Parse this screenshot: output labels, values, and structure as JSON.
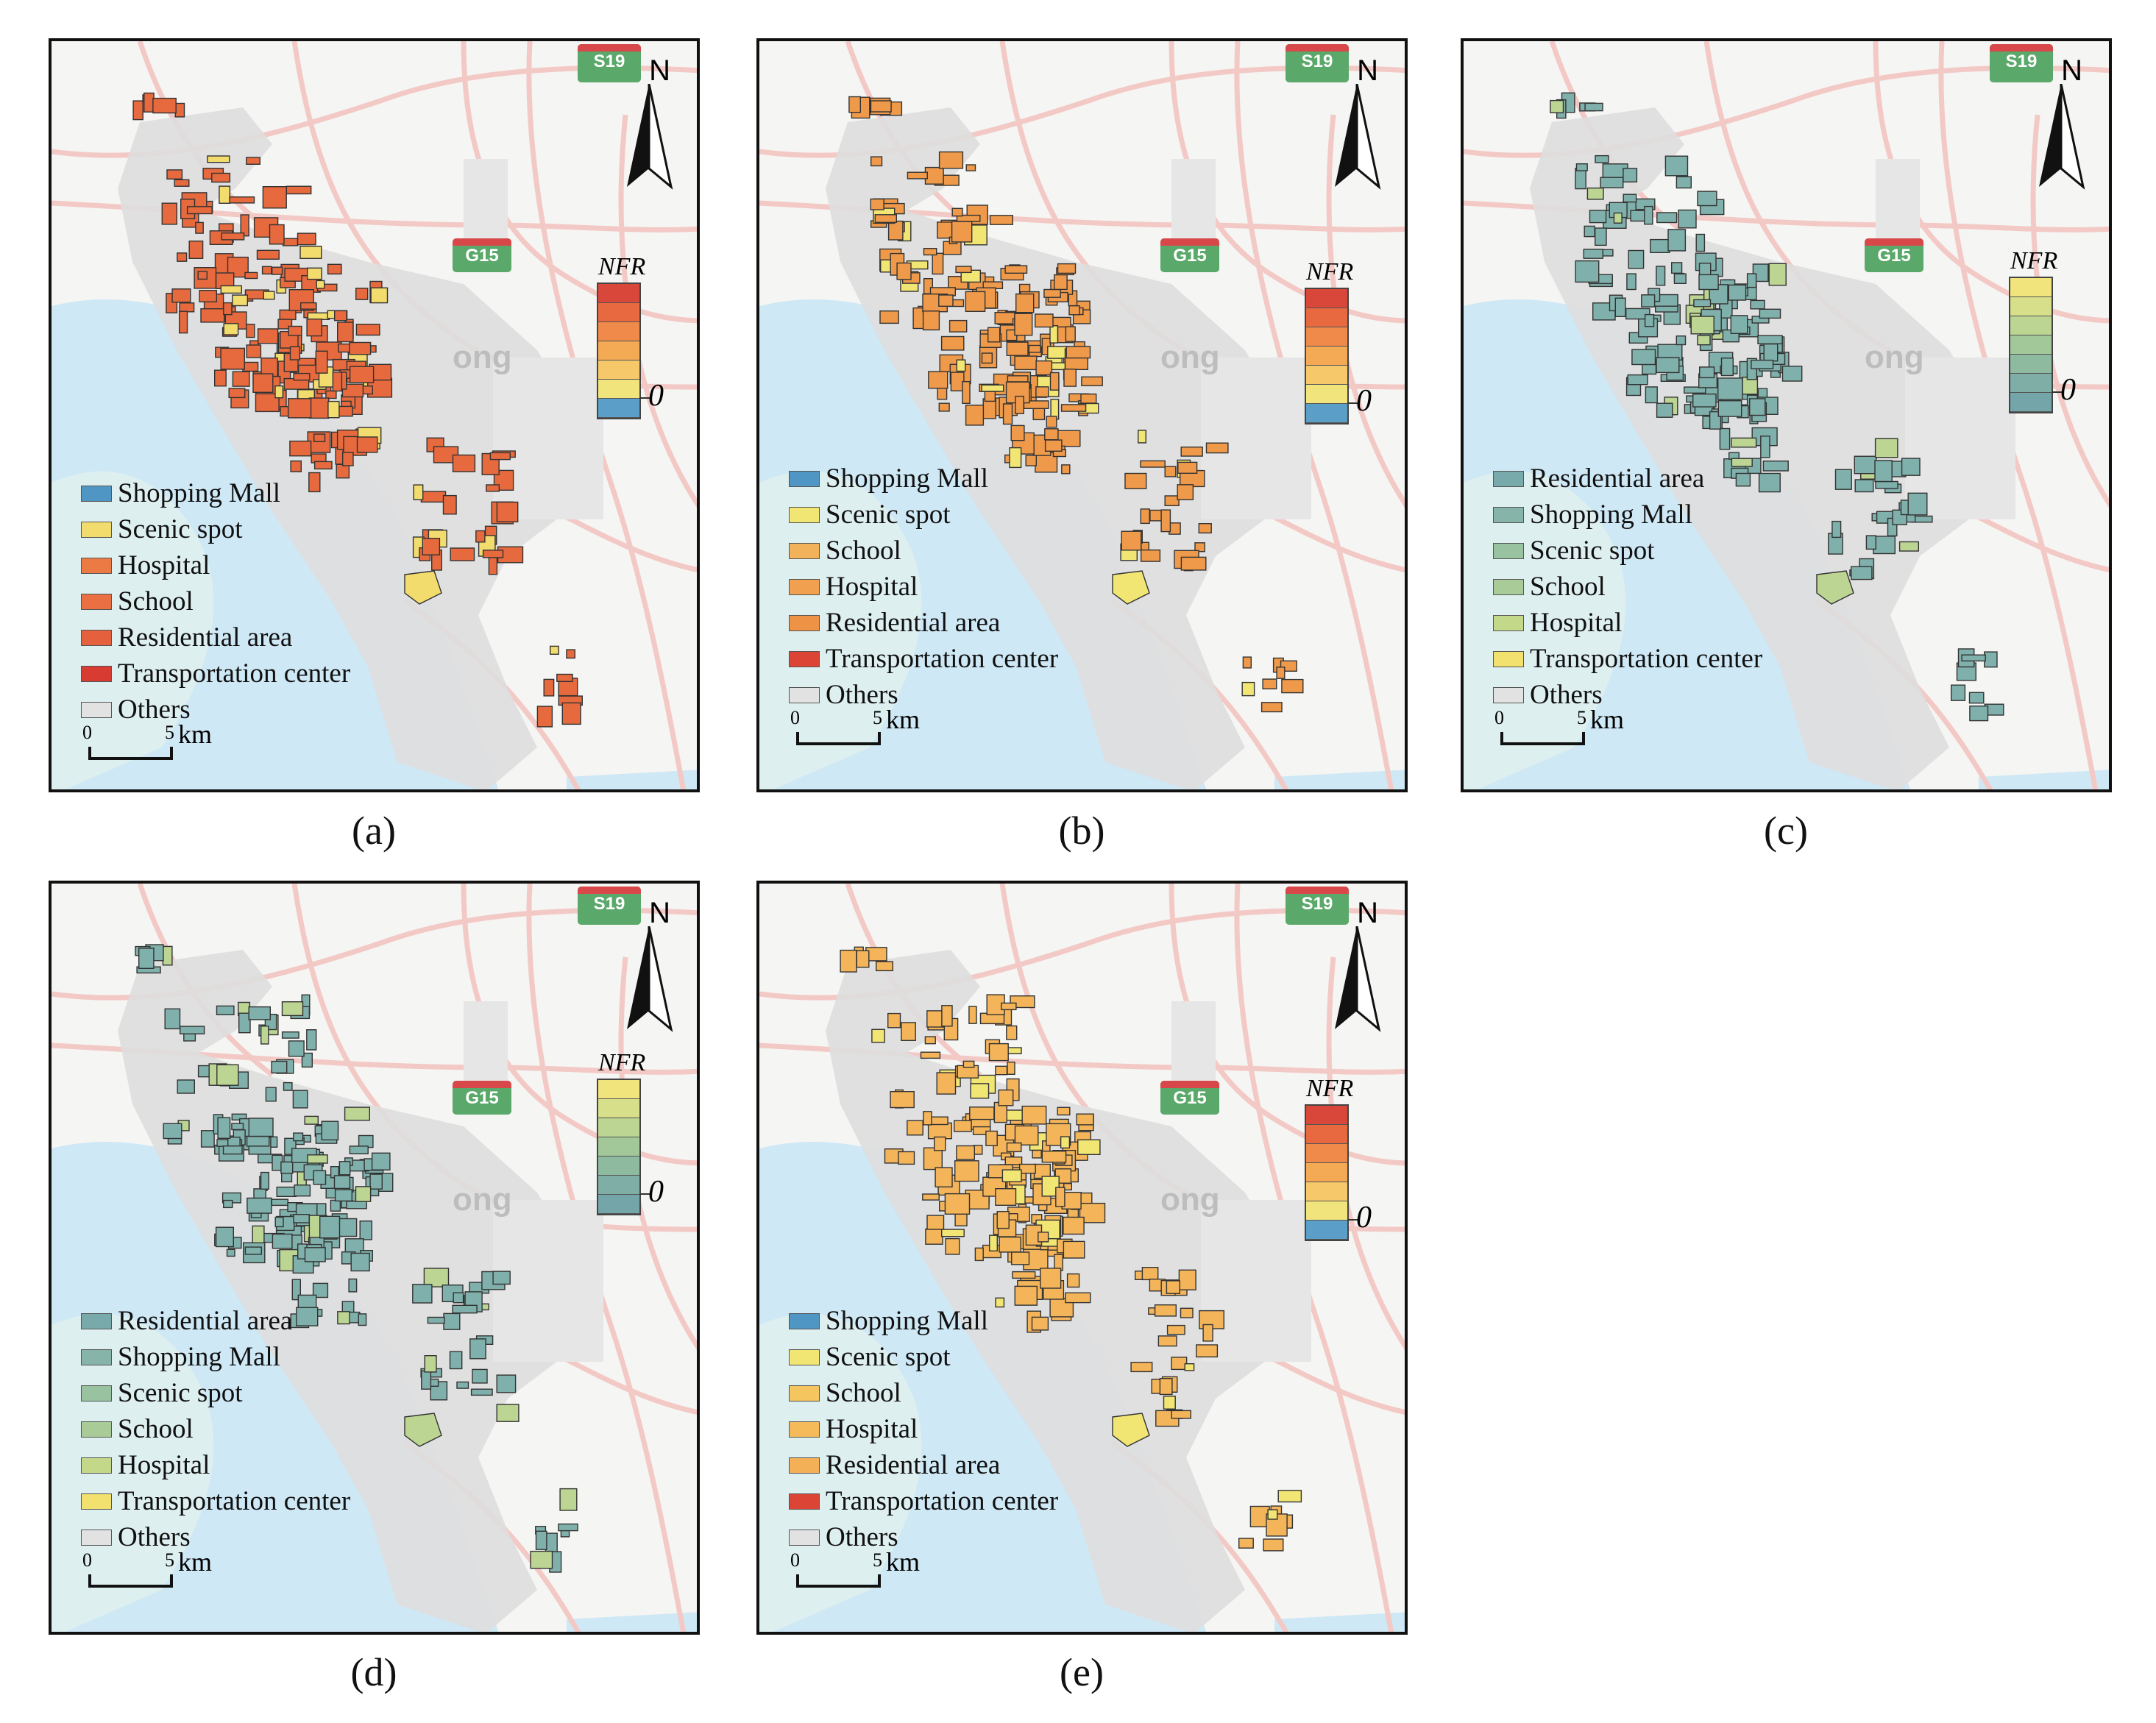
{
  "map_labels": {
    "road_top": "S19",
    "road_mid": "G15",
    "city_fragment": "ong",
    "north": "N"
  },
  "nfr_title": "NFR",
  "nfr_zero": "0",
  "scale": {
    "zero": "0",
    "five": "5",
    "unit": "km"
  },
  "panels": [
    {
      "caption": "(a)",
      "ramp": [
        "#d8473a",
        "#e8693f",
        "#ef8a4a",
        "#f4a955",
        "#f6c869",
        "#f1e47c",
        "#5b9fc8"
      ],
      "legend": [
        {
          "label": "Shopping Mall",
          "color": "#4f96c4"
        },
        {
          "label": "Scenic spot",
          "color": "#f3dc6e"
        },
        {
          "label": "Hospital",
          "color": "#ec7a45"
        },
        {
          "label": "School",
          "color": "#ea7044"
        },
        {
          "label": "Residential area",
          "color": "#e5603c"
        },
        {
          "label": "Transportation center",
          "color": "#d73b32"
        },
        {
          "label": "Others",
          "color": "#e2e2e2"
        }
      ],
      "fill": "#e66a3e",
      "accent": "#f3dc6e"
    },
    {
      "caption": "(b)",
      "ramp": [
        "#d8473a",
        "#e8693f",
        "#ef8a4a",
        "#f4a955",
        "#f6c869",
        "#f1e47c",
        "#5b9fc8"
      ],
      "legend": [
        {
          "label": "Shopping Mall",
          "color": "#4f96c4"
        },
        {
          "label": "Scenic spot",
          "color": "#f1e674"
        },
        {
          "label": "School",
          "color": "#f2b25a"
        },
        {
          "label": "Hospital",
          "color": "#f0a04e"
        },
        {
          "label": "Residential area",
          "color": "#ee9246"
        },
        {
          "label": "Transportation center",
          "color": "#dc4535"
        },
        {
          "label": "Others",
          "color": "#e2e2e2"
        }
      ],
      "fill": "#ef9a4a",
      "accent": "#f1e674"
    },
    {
      "caption": "(c)",
      "ramp": [
        "#f1e47c",
        "#d8df8a",
        "#bcd593",
        "#a2c899",
        "#8ebaa0",
        "#7eaea6",
        "#74a5a8"
      ],
      "legend": [
        {
          "label": "Residential area",
          "color": "#78aaac"
        },
        {
          "label": "Shopping Mall",
          "color": "#86b4a8"
        },
        {
          "label": "Scenic spot",
          "color": "#98c2a0"
        },
        {
          "label": "School",
          "color": "#a8cb98"
        },
        {
          "label": "Hospital",
          "color": "#c4d88a"
        },
        {
          "label": "Transportation center",
          "color": "#f2e16e"
        },
        {
          "label": "Others",
          "color": "#e2e2e2"
        }
      ],
      "fill": "#7fb0ab",
      "accent": "#bcd593"
    },
    {
      "caption": "(d)",
      "ramp": [
        "#f1e47c",
        "#d8df8a",
        "#bcd593",
        "#a2c899",
        "#8ebaa0",
        "#7eaea6",
        "#74a5a8"
      ],
      "legend": [
        {
          "label": "Residential area",
          "color": "#78aaac"
        },
        {
          "label": "Shopping Mall",
          "color": "#86b4a8"
        },
        {
          "label": "Scenic spot",
          "color": "#98c2a0"
        },
        {
          "label": "School",
          "color": "#a8cb98"
        },
        {
          "label": "Hospital",
          "color": "#c4d88a"
        },
        {
          "label": "Transportation center",
          "color": "#f2e16e"
        },
        {
          "label": "Others",
          "color": "#e2e2e2"
        }
      ],
      "fill": "#7fb0ab",
      "accent": "#bcd593"
    },
    {
      "caption": "(e)",
      "ramp": [
        "#d8473a",
        "#e8693f",
        "#ef8a4a",
        "#f4a955",
        "#f6c869",
        "#f1e47c",
        "#5b9fc8"
      ],
      "legend": [
        {
          "label": "Shopping Mall",
          "color": "#4f96c4"
        },
        {
          "label": "Scenic spot",
          "color": "#f1e674"
        },
        {
          "label": "School",
          "color": "#f5c560"
        },
        {
          "label": "Hospital",
          "color": "#f5bb5a"
        },
        {
          "label": "Residential area",
          "color": "#f4b056"
        },
        {
          "label": "Transportation center",
          "color": "#dc4535"
        },
        {
          "label": "Others",
          "color": "#e2e2e2"
        }
      ],
      "fill": "#f4b55a",
      "accent": "#f1e674"
    }
  ]
}
